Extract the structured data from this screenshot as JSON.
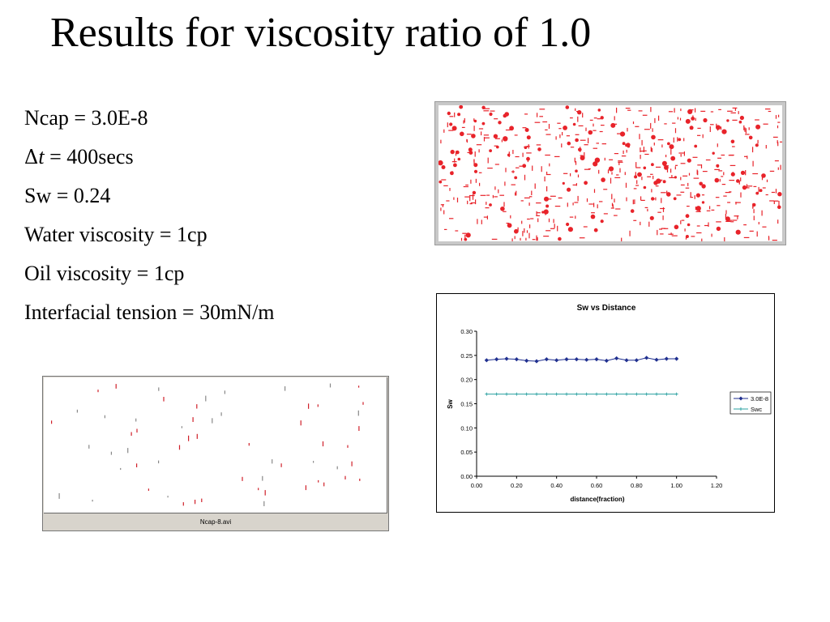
{
  "slide": {
    "title": "Results for viscosity ratio of 1.0",
    "params": {
      "ncap": "Ncap = 3.0E-8",
      "delta_symbol": "Δ",
      "delta_var": "t",
      "delta_value": " = 400secs",
      "sw": "Sw = 0.24",
      "water_viscosity": "Water viscosity = 1cp",
      "oil_viscosity": "Oil viscosity = 1cp",
      "interfacial_tension": "Interfacial tension = 30mN/m"
    },
    "video": {
      "caption": "Ncap-8.avi"
    }
  },
  "chart_data": {
    "type": "line",
    "title": "Sw vs Distance",
    "xlabel": "distance(fraction)",
    "ylabel": "Sw",
    "xlim": [
      0,
      1.2
    ],
    "ylim": [
      0,
      0.3
    ],
    "x_ticks": [
      "0.00",
      "0.20",
      "0.40",
      "0.60",
      "0.80",
      "1.00",
      "1.20"
    ],
    "y_ticks": [
      "0.00",
      "0.05",
      "0.10",
      "0.15",
      "0.20",
      "0.25",
      "0.30"
    ],
    "grid": false,
    "legend": "right",
    "series": [
      {
        "name": "3.0E-8",
        "color": "#1f2f8f",
        "marker": "diamond",
        "x": [
          0.05,
          0.1,
          0.15,
          0.2,
          0.25,
          0.3,
          0.35,
          0.4,
          0.45,
          0.5,
          0.55,
          0.6,
          0.65,
          0.7,
          0.75,
          0.8,
          0.85,
          0.9,
          0.95,
          1.0
        ],
        "y": [
          0.24,
          0.242,
          0.243,
          0.242,
          0.239,
          0.238,
          0.242,
          0.24,
          0.242,
          0.242,
          0.241,
          0.242,
          0.239,
          0.244,
          0.24,
          0.24,
          0.245,
          0.241,
          0.243,
          0.243
        ]
      },
      {
        "name": "Swc",
        "color": "#2aa0a0",
        "marker": "plus",
        "x": [
          0.05,
          0.1,
          0.15,
          0.2,
          0.25,
          0.3,
          0.35,
          0.4,
          0.45,
          0.5,
          0.55,
          0.6,
          0.65,
          0.7,
          0.75,
          0.8,
          0.85,
          0.9,
          0.95,
          1.0
        ],
        "y": [
          0.17,
          0.17,
          0.17,
          0.17,
          0.17,
          0.17,
          0.17,
          0.17,
          0.17,
          0.17,
          0.17,
          0.17,
          0.17,
          0.17,
          0.17,
          0.17,
          0.17,
          0.17,
          0.17,
          0.17
        ]
      }
    ]
  },
  "colors": {
    "sim_dots": "#e8232a",
    "video_dots": "#d0202a",
    "video_bar": "#d8d4cc"
  }
}
